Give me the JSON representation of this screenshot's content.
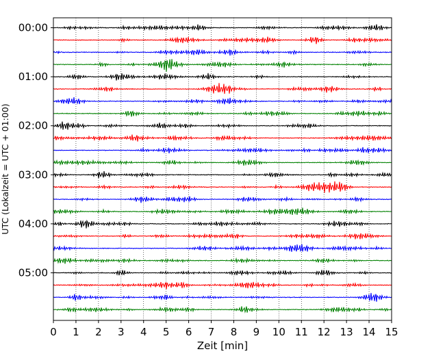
{
  "chart_data": {
    "type": "line",
    "title": "",
    "xlabel": "Zeit  [min]",
    "ylabel": "UTC (Lokalzeit = UTC + 01:00)",
    "xlim": [
      0,
      15
    ],
    "x_ticks": [
      "0",
      "1",
      "2",
      "3",
      "4",
      "5",
      "6",
      "7",
      "8",
      "9",
      "10",
      "11",
      "12",
      "13",
      "14",
      "15"
    ],
    "y_ticks": [
      "00:00",
      "01:00",
      "02:00",
      "03:00",
      "04:00",
      "05:00"
    ],
    "grid": "vertical dotted lines at each minute",
    "trace_count": 24,
    "trace_interval_min": 15,
    "trace_colors": [
      "#000000",
      "#ff0000",
      "#0000ff",
      "#008000"
    ]
  }
}
